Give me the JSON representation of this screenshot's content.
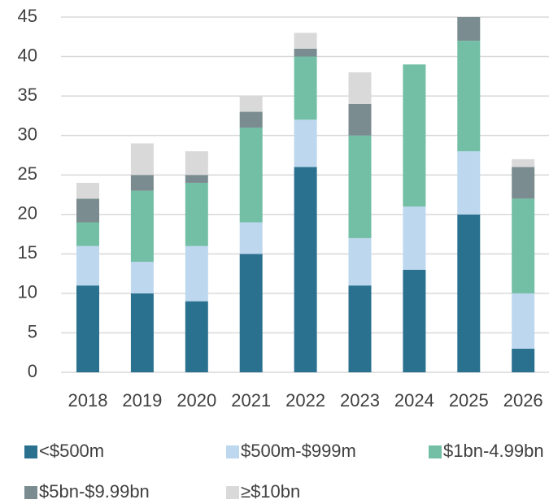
{
  "chart_data": {
    "type": "stacked_bar",
    "categories": [
      "2018",
      "2019",
      "2020",
      "2021",
      "2022",
      "2023",
      "2024",
      "2025",
      "2026"
    ],
    "series": [
      {
        "name": "<$500m",
        "color": "#2a7190",
        "values": [
          11,
          10,
          9,
          15,
          26,
          11,
          13,
          20,
          3
        ]
      },
      {
        "name": "$500m-$999m",
        "color": "#bdd7ee",
        "values": [
          5,
          4,
          7,
          4,
          6,
          6,
          8,
          8,
          7
        ]
      },
      {
        "name": "$1bn-4.99bn",
        "color": "#72bfa5",
        "values": [
          3,
          9,
          8,
          12,
          8,
          13,
          18,
          14,
          12
        ]
      },
      {
        "name": "$5bn-$9.99bn",
        "color": "#7a8c8f",
        "values": [
          3,
          2,
          1,
          2,
          1,
          4,
          0,
          3,
          4
        ]
      },
      {
        "name": "≥$10bn",
        "color": "#d9d9d9",
        "values": [
          2,
          4,
          3,
          2,
          2,
          4,
          0,
          0,
          1
        ]
      }
    ],
    "ylim": [
      0,
      45
    ],
    "yticks": [
      0,
      5,
      10,
      15,
      20,
      25,
      30,
      35,
      40,
      45
    ],
    "grid": true
  }
}
